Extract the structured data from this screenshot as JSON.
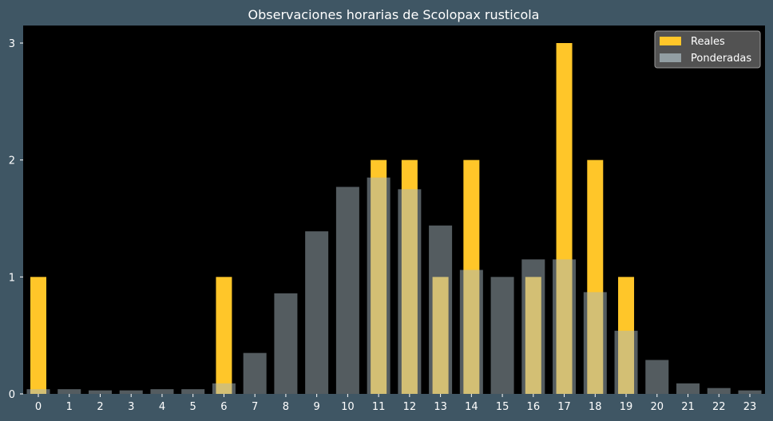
{
  "chart_data": {
    "type": "bar",
    "title": "Observaciones horarias de Scolopax rusticola",
    "xlabel": "",
    "ylabel": "",
    "categories": [
      "0",
      "1",
      "2",
      "3",
      "4",
      "5",
      "6",
      "7",
      "8",
      "9",
      "10",
      "11",
      "12",
      "13",
      "14",
      "15",
      "16",
      "17",
      "18",
      "19",
      "20",
      "21",
      "22",
      "23"
    ],
    "ylim": [
      0,
      3.15
    ],
    "yticks": [
      0,
      1,
      2,
      3
    ],
    "grid": false,
    "legend_position": "top-right",
    "series": [
      {
        "name": "Reales",
        "color": "#ffc629",
        "values": [
          1,
          0,
          0,
          0,
          0,
          0,
          1,
          0,
          0,
          0,
          0,
          2,
          2,
          1,
          2,
          0,
          1,
          3,
          2,
          1,
          0,
          0,
          0,
          0
        ]
      },
      {
        "name": "Ponderadas",
        "color": "#a8b8bf",
        "values": [
          0.04,
          0.04,
          0.03,
          0.03,
          0.04,
          0.04,
          0.09,
          0.35,
          0.86,
          1.39,
          1.77,
          1.85,
          1.75,
          1.44,
          1.06,
          1.0,
          1.15,
          1.15,
          0.87,
          0.54,
          0.29,
          0.09,
          0.05,
          0.03
        ]
      }
    ]
  }
}
